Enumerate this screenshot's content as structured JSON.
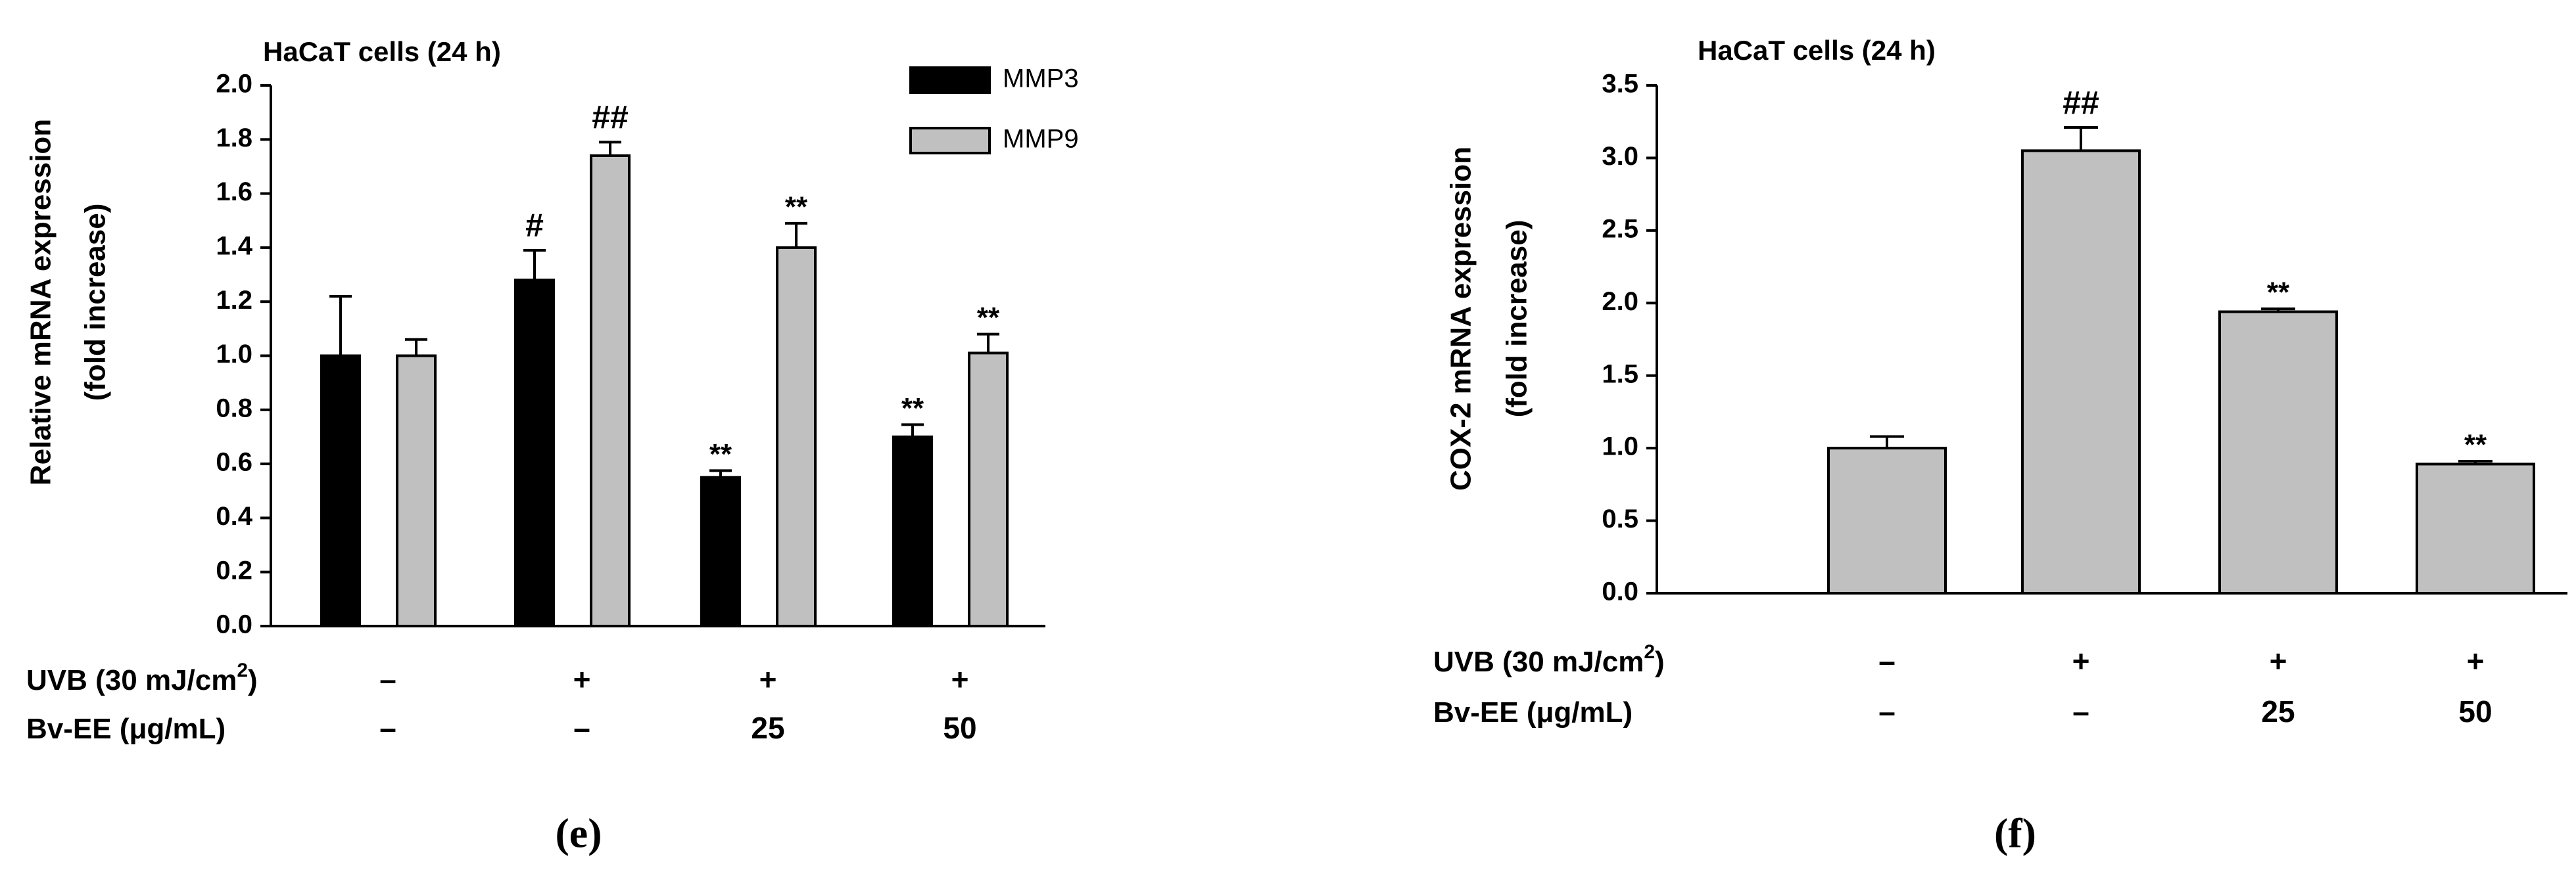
{
  "chart_data": [
    {
      "panel": "(e)",
      "type": "bar",
      "title": "HaCaT cells (24 h)",
      "ylabel": "Relative mRNA expression",
      "ylabel2": "(fold increase)",
      "ylim": [
        0,
        2.0
      ],
      "yticks": [
        "0.0",
        "0.2",
        "0.4",
        "0.6",
        "0.8",
        "1.0",
        "1.2",
        "1.4",
        "1.6",
        "1.8",
        "2.0"
      ],
      "grid": false,
      "legend": "top-right",
      "categories": [
        "1",
        "2",
        "3",
        "4"
      ],
      "treatment_rows": [
        {
          "label": "UVB (30 mJ/cm",
          "sup": "2",
          "label_end": ")",
          "values": [
            "–",
            "+",
            "+",
            "+"
          ]
        },
        {
          "label": "Bv-EE (μg/mL)",
          "values": [
            "–",
            "–",
            "25",
            "50"
          ]
        }
      ],
      "series": [
        {
          "name": "MMP3",
          "color": "#000000",
          "values": [
            1.0,
            1.28,
            0.55,
            0.7
          ],
          "errors": [
            0.22,
            0.11,
            0.025,
            0.045
          ],
          "annotations": [
            "",
            "#",
            "**",
            "**"
          ]
        },
        {
          "name": "MMP9",
          "color": "#c0c0c0",
          "values": [
            1.0,
            1.74,
            1.4,
            1.01
          ],
          "errors": [
            0.06,
            0.05,
            0.09,
            0.07
          ],
          "annotations": [
            "",
            "##",
            "**",
            "**"
          ]
        }
      ]
    },
    {
      "panel": "(f)",
      "type": "bar",
      "title": "HaCaT cells (24 h)",
      "ylabel": "COX-2 mRNA expression",
      "ylabel2": "(fold increase)",
      "ylim": [
        0,
        3.5
      ],
      "yticks": [
        "0.0",
        "0.5",
        "1.0",
        "1.5",
        "2.0",
        "2.5",
        "3.0",
        "3.5"
      ],
      "grid": false,
      "categories": [
        "1",
        "2",
        "3",
        "4"
      ],
      "treatment_rows": [
        {
          "label": "UVB (30 mJ/cm",
          "sup": "2",
          "label_end": ")",
          "values": [
            "–",
            "+",
            "+",
            "+"
          ]
        },
        {
          "label": "Bv-EE (μg/mL)",
          "values": [
            "–",
            "–",
            "25",
            "50"
          ]
        }
      ],
      "series": [
        {
          "color": "#c0c0c0",
          "values": [
            1.0,
            3.05,
            1.94,
            0.89
          ],
          "errors": [
            0.08,
            0.16,
            0.02,
            0.02
          ],
          "annotations": [
            "",
            "##",
            "**",
            "**"
          ]
        }
      ]
    }
  ]
}
